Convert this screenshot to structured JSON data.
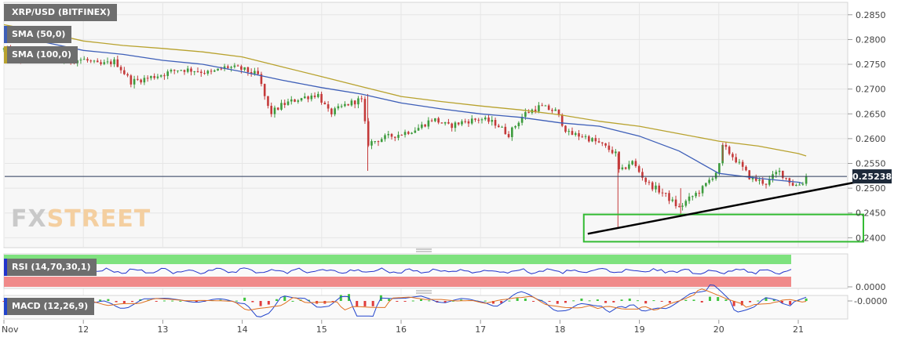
{
  "chart_data": {
    "type": "candlestick",
    "title": "XRP/USD (BITFINEX)",
    "price_ylim": [
      0.238,
      0.2875
    ],
    "price_ticks": [
      "0.2850",
      "0.2800",
      "0.2750",
      "0.2700",
      "0.2650",
      "0.2600",
      "0.2550",
      "0.2500",
      "0.2450",
      "0.2400"
    ],
    "current_price": "0.25238",
    "current_price_value": 0.25238,
    "x_labels": [
      "Nov",
      "12",
      "13",
      "14",
      "15",
      "16",
      "17",
      "18",
      "19",
      "20",
      "21"
    ],
    "series": [
      {
        "name": "SMA (50,0)",
        "color": "#3e5fb8",
        "points": [
          [
            0,
            0.28
          ],
          [
            0.5,
            0.2795
          ],
          [
            1,
            0.2778
          ],
          [
            1.5,
            0.277
          ],
          [
            2,
            0.2758
          ],
          [
            2.5,
            0.275
          ],
          [
            3,
            0.2735
          ],
          [
            3.5,
            0.2718
          ],
          [
            4,
            0.2703
          ],
          [
            4.5,
            0.269
          ],
          [
            5,
            0.2672
          ],
          [
            5.5,
            0.266
          ],
          [
            6,
            0.265
          ],
          [
            6.5,
            0.2643
          ],
          [
            7,
            0.2632
          ],
          [
            7.5,
            0.2625
          ],
          [
            8,
            0.2605
          ],
          [
            8.5,
            0.2575
          ],
          [
            9,
            0.253
          ],
          [
            9.5,
            0.252
          ],
          [
            10,
            0.2512
          ],
          [
            10.05,
            0.251
          ]
        ]
      },
      {
        "name": "SMA (100,0)",
        "color": "#b8a22e",
        "points": [
          [
            0,
            0.283
          ],
          [
            0.5,
            0.2815
          ],
          [
            1,
            0.2797
          ],
          [
            1.5,
            0.2788
          ],
          [
            2,
            0.2782
          ],
          [
            2.5,
            0.2775
          ],
          [
            3,
            0.2765
          ],
          [
            3.5,
            0.2745
          ],
          [
            4,
            0.2725
          ],
          [
            4.5,
            0.2705
          ],
          [
            5,
            0.2685
          ],
          [
            5.5,
            0.2675
          ],
          [
            6,
            0.2666
          ],
          [
            6.5,
            0.2658
          ],
          [
            7,
            0.2648
          ],
          [
            7.5,
            0.2635
          ],
          [
            8,
            0.2625
          ],
          [
            8.5,
            0.261
          ],
          [
            9,
            0.2595
          ],
          [
            9.5,
            0.2585
          ],
          [
            10,
            0.257
          ],
          [
            10.1,
            0.2565
          ]
        ]
      }
    ],
    "close_path": [
      [
        0,
        0.278
      ],
      [
        0.2,
        0.276
      ],
      [
        0.4,
        0.277
      ],
      [
        0.7,
        0.2755
      ],
      [
        1,
        0.276
      ],
      [
        1.2,
        0.2748
      ],
      [
        1.4,
        0.2756
      ],
      [
        1.6,
        0.2715
      ],
      [
        1.8,
        0.2722
      ],
      [
        2,
        0.273
      ],
      [
        2.2,
        0.274
      ],
      [
        2.4,
        0.2738
      ],
      [
        2.6,
        0.2732
      ],
      [
        2.8,
        0.2745
      ],
      [
        3,
        0.274
      ],
      [
        3.2,
        0.2728
      ],
      [
        3.35,
        0.265
      ],
      [
        3.5,
        0.2668
      ],
      [
        3.7,
        0.268
      ],
      [
        3.95,
        0.269
      ],
      [
        4.1,
        0.265
      ],
      [
        4.3,
        0.2668
      ],
      [
        4.5,
        0.268
      ],
      [
        4.58,
        0.259
      ],
      [
        4.75,
        0.26
      ],
      [
        5,
        0.261
      ],
      [
        5.2,
        0.262
      ],
      [
        5.4,
        0.264
      ],
      [
        5.6,
        0.2625
      ],
      [
        5.8,
        0.2635
      ],
      [
        6,
        0.264
      ],
      [
        6.2,
        0.263
      ],
      [
        6.35,
        0.2608
      ],
      [
        6.55,
        0.265
      ],
      [
        6.75,
        0.2665
      ],
      [
        6.95,
        0.2655
      ],
      [
        7.1,
        0.261
      ],
      [
        7.3,
        0.2605
      ],
      [
        7.5,
        0.259
      ],
      [
        7.7,
        0.257
      ],
      [
        7.75,
        0.253
      ],
      [
        7.9,
        0.2555
      ],
      [
        8.1,
        0.251
      ],
      [
        8.3,
        0.249
      ],
      [
        8.5,
        0.246
      ],
      [
        8.6,
        0.2475
      ],
      [
        8.8,
        0.25
      ],
      [
        9,
        0.254
      ],
      [
        9.05,
        0.2585
      ],
      [
        9.2,
        0.256
      ],
      [
        9.4,
        0.252
      ],
      [
        9.6,
        0.251
      ],
      [
        9.75,
        0.2535
      ],
      [
        9.95,
        0.2505
      ],
      [
        10.05,
        0.251
      ],
      [
        10.1,
        0.2524
      ]
    ],
    "range_box": {
      "x0": 7.3,
      "x1": 10.82,
      "y0": 0.2392,
      "y1": 0.2447,
      "color": "#33bb33"
    },
    "trendline": {
      "x0": 7.35,
      "y0": 0.2408,
      "x1": 10.82,
      "y1": 0.2515
    },
    "indicators": {
      "rsi": {
        "label": "RSI (14,70,30,1)",
        "overbought_color": "#7ee27e",
        "oversold_color": "#f08a8a",
        "tick": "0.0000"
      },
      "macd": {
        "label": "MACD (12,26,9)",
        "tick": "-0.0000"
      }
    }
  },
  "watermark": {
    "fx": "FX",
    "street": "STREET"
  }
}
